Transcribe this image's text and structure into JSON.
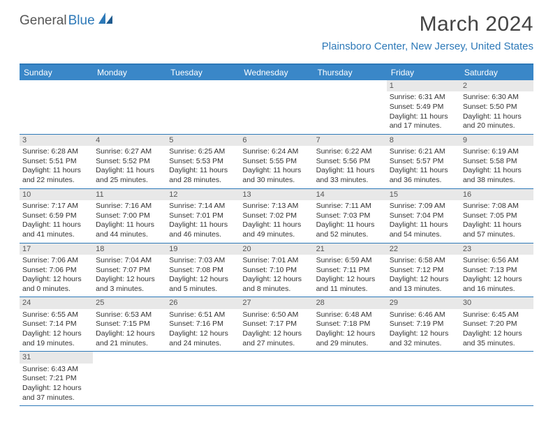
{
  "brand": {
    "part1": "General",
    "part2": "Blue"
  },
  "title": "March 2024",
  "location": "Plainsboro Center, New Jersey, United States",
  "colors": {
    "accent": "#2d79b8",
    "header_bg": "#3a87c8",
    "daynum_bg": "#e8e8e8",
    "text": "#333333",
    "background": "#ffffff"
  },
  "day_names": [
    "Sunday",
    "Monday",
    "Tuesday",
    "Wednesday",
    "Thursday",
    "Friday",
    "Saturday"
  ],
  "weeks": [
    [
      null,
      null,
      null,
      null,
      null,
      {
        "n": "1",
        "sr": "Sunrise: 6:31 AM",
        "ss": "Sunset: 5:49 PM",
        "d1": "Daylight: 11 hours",
        "d2": "and 17 minutes."
      },
      {
        "n": "2",
        "sr": "Sunrise: 6:30 AM",
        "ss": "Sunset: 5:50 PM",
        "d1": "Daylight: 11 hours",
        "d2": "and 20 minutes."
      }
    ],
    [
      {
        "n": "3",
        "sr": "Sunrise: 6:28 AM",
        "ss": "Sunset: 5:51 PM",
        "d1": "Daylight: 11 hours",
        "d2": "and 22 minutes."
      },
      {
        "n": "4",
        "sr": "Sunrise: 6:27 AM",
        "ss": "Sunset: 5:52 PM",
        "d1": "Daylight: 11 hours",
        "d2": "and 25 minutes."
      },
      {
        "n": "5",
        "sr": "Sunrise: 6:25 AM",
        "ss": "Sunset: 5:53 PM",
        "d1": "Daylight: 11 hours",
        "d2": "and 28 minutes."
      },
      {
        "n": "6",
        "sr": "Sunrise: 6:24 AM",
        "ss": "Sunset: 5:55 PM",
        "d1": "Daylight: 11 hours",
        "d2": "and 30 minutes."
      },
      {
        "n": "7",
        "sr": "Sunrise: 6:22 AM",
        "ss": "Sunset: 5:56 PM",
        "d1": "Daylight: 11 hours",
        "d2": "and 33 minutes."
      },
      {
        "n": "8",
        "sr": "Sunrise: 6:21 AM",
        "ss": "Sunset: 5:57 PM",
        "d1": "Daylight: 11 hours",
        "d2": "and 36 minutes."
      },
      {
        "n": "9",
        "sr": "Sunrise: 6:19 AM",
        "ss": "Sunset: 5:58 PM",
        "d1": "Daylight: 11 hours",
        "d2": "and 38 minutes."
      }
    ],
    [
      {
        "n": "10",
        "sr": "Sunrise: 7:17 AM",
        "ss": "Sunset: 6:59 PM",
        "d1": "Daylight: 11 hours",
        "d2": "and 41 minutes."
      },
      {
        "n": "11",
        "sr": "Sunrise: 7:16 AM",
        "ss": "Sunset: 7:00 PM",
        "d1": "Daylight: 11 hours",
        "d2": "and 44 minutes."
      },
      {
        "n": "12",
        "sr": "Sunrise: 7:14 AM",
        "ss": "Sunset: 7:01 PM",
        "d1": "Daylight: 11 hours",
        "d2": "and 46 minutes."
      },
      {
        "n": "13",
        "sr": "Sunrise: 7:13 AM",
        "ss": "Sunset: 7:02 PM",
        "d1": "Daylight: 11 hours",
        "d2": "and 49 minutes."
      },
      {
        "n": "14",
        "sr": "Sunrise: 7:11 AM",
        "ss": "Sunset: 7:03 PM",
        "d1": "Daylight: 11 hours",
        "d2": "and 52 minutes."
      },
      {
        "n": "15",
        "sr": "Sunrise: 7:09 AM",
        "ss": "Sunset: 7:04 PM",
        "d1": "Daylight: 11 hours",
        "d2": "and 54 minutes."
      },
      {
        "n": "16",
        "sr": "Sunrise: 7:08 AM",
        "ss": "Sunset: 7:05 PM",
        "d1": "Daylight: 11 hours",
        "d2": "and 57 minutes."
      }
    ],
    [
      {
        "n": "17",
        "sr": "Sunrise: 7:06 AM",
        "ss": "Sunset: 7:06 PM",
        "d1": "Daylight: 12 hours",
        "d2": "and 0 minutes."
      },
      {
        "n": "18",
        "sr": "Sunrise: 7:04 AM",
        "ss": "Sunset: 7:07 PM",
        "d1": "Daylight: 12 hours",
        "d2": "and 3 minutes."
      },
      {
        "n": "19",
        "sr": "Sunrise: 7:03 AM",
        "ss": "Sunset: 7:08 PM",
        "d1": "Daylight: 12 hours",
        "d2": "and 5 minutes."
      },
      {
        "n": "20",
        "sr": "Sunrise: 7:01 AM",
        "ss": "Sunset: 7:10 PM",
        "d1": "Daylight: 12 hours",
        "d2": "and 8 minutes."
      },
      {
        "n": "21",
        "sr": "Sunrise: 6:59 AM",
        "ss": "Sunset: 7:11 PM",
        "d1": "Daylight: 12 hours",
        "d2": "and 11 minutes."
      },
      {
        "n": "22",
        "sr": "Sunrise: 6:58 AM",
        "ss": "Sunset: 7:12 PM",
        "d1": "Daylight: 12 hours",
        "d2": "and 13 minutes."
      },
      {
        "n": "23",
        "sr": "Sunrise: 6:56 AM",
        "ss": "Sunset: 7:13 PM",
        "d1": "Daylight: 12 hours",
        "d2": "and 16 minutes."
      }
    ],
    [
      {
        "n": "24",
        "sr": "Sunrise: 6:55 AM",
        "ss": "Sunset: 7:14 PM",
        "d1": "Daylight: 12 hours",
        "d2": "and 19 minutes."
      },
      {
        "n": "25",
        "sr": "Sunrise: 6:53 AM",
        "ss": "Sunset: 7:15 PM",
        "d1": "Daylight: 12 hours",
        "d2": "and 21 minutes."
      },
      {
        "n": "26",
        "sr": "Sunrise: 6:51 AM",
        "ss": "Sunset: 7:16 PM",
        "d1": "Daylight: 12 hours",
        "d2": "and 24 minutes."
      },
      {
        "n": "27",
        "sr": "Sunrise: 6:50 AM",
        "ss": "Sunset: 7:17 PM",
        "d1": "Daylight: 12 hours",
        "d2": "and 27 minutes."
      },
      {
        "n": "28",
        "sr": "Sunrise: 6:48 AM",
        "ss": "Sunset: 7:18 PM",
        "d1": "Daylight: 12 hours",
        "d2": "and 29 minutes."
      },
      {
        "n": "29",
        "sr": "Sunrise: 6:46 AM",
        "ss": "Sunset: 7:19 PM",
        "d1": "Daylight: 12 hours",
        "d2": "and 32 minutes."
      },
      {
        "n": "30",
        "sr": "Sunrise: 6:45 AM",
        "ss": "Sunset: 7:20 PM",
        "d1": "Daylight: 12 hours",
        "d2": "and 35 minutes."
      }
    ],
    [
      {
        "n": "31",
        "sr": "Sunrise: 6:43 AM",
        "ss": "Sunset: 7:21 PM",
        "d1": "Daylight: 12 hours",
        "d2": "and 37 minutes."
      },
      null,
      null,
      null,
      null,
      null,
      null
    ]
  ]
}
